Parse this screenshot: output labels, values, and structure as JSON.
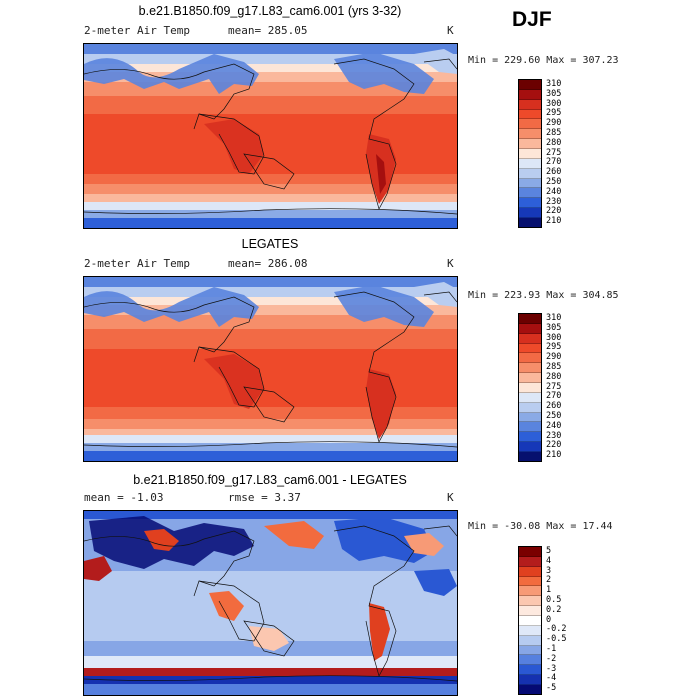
{
  "season": "DJF",
  "panels": [
    {
      "title": "b.e21.B1850.f09_g17.L83_cam6.001 (yrs 3-32)",
      "variable": "2-meter Air Temp",
      "stat_label": "mean=",
      "stat_value": "285.05",
      "stat2_label": "",
      "stat2_value": "",
      "units": "K",
      "min_label": "Min =",
      "min_value": "229.60",
      "max_label": "Max =",
      "max_value": "307.23",
      "colorbar_labels": [
        "310",
        "305",
        "300",
        "295",
        "290",
        "285",
        "280",
        "275",
        "270",
        "260",
        "250",
        "240",
        "230",
        "220",
        "210"
      ]
    },
    {
      "title": "LEGATES",
      "variable": "2-meter Air Temp",
      "stat_label": "mean=",
      "stat_value": "286.08",
      "stat2_label": "",
      "stat2_value": "",
      "units": "K",
      "min_label": "Min =",
      "min_value": "223.93",
      "max_label": "Max =",
      "max_value": "304.85",
      "colorbar_labels": [
        "310",
        "305",
        "300",
        "295",
        "290",
        "285",
        "280",
        "275",
        "270",
        "260",
        "250",
        "240",
        "230",
        "220",
        "210"
      ]
    },
    {
      "title": "b.e21.B1850.f09_g17.L83_cam6.001 - LEGATES",
      "variable": "",
      "stat_label": "mean =",
      "stat_value": "-1.03",
      "stat2_label": "rmse =",
      "stat2_value": "3.37",
      "units": "K",
      "min_label": "Min =",
      "min_value": "-30.08",
      "max_label": "Max =",
      "max_value": "17.44",
      "colorbar_labels": [
        "5",
        "4",
        "3",
        "2",
        "1",
        "0.5",
        "0.2",
        "0",
        "-0.2",
        "-0.5",
        "-1",
        "-2",
        "-3",
        "-4",
        "-5"
      ]
    }
  ],
  "colors": {
    "temp_scale": [
      "#6b0000",
      "#a50f0f",
      "#d7301f",
      "#ee4a2a",
      "#f26a45",
      "#f68e6a",
      "#fab89c",
      "#fde6d8",
      "#dde7f7",
      "#b9cdf0",
      "#8aaae6",
      "#5a84de",
      "#2d5fd8",
      "#1638b8",
      "#06106e"
    ],
    "diff_scale": [
      "#7a0000",
      "#b31c1c",
      "#e0401f",
      "#f26b3e",
      "#f79a76",
      "#fbc7b0",
      "#fde9df",
      "#ffffff",
      "#dfe8f8",
      "#b6cbf0",
      "#87a6e6",
      "#5680df",
      "#2a58d3",
      "#1531b0",
      "#050a74"
    ]
  }
}
